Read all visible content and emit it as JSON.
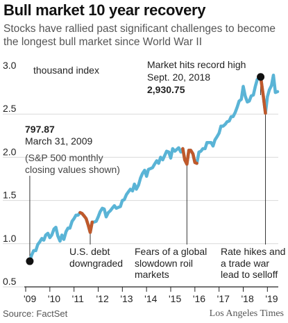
{
  "title": "Bull market 10 year recovery",
  "subtitle": "Stocks have rallied past significant challenges to become the longest bull market since World War II",
  "source": "Source: FactSet",
  "credit": "Los Angeles Times",
  "colors": {
    "line": "#5ab4d6",
    "selloff": "#c0592b",
    "marker": "#111111",
    "grid": "#d9d9d9"
  },
  "chart_data": {
    "type": "line",
    "xlabel": "",
    "ylabel": "",
    "y_unit_label": "thousand index",
    "ylim": [
      0.5,
      3.0
    ],
    "xlim": [
      2009,
      2019.45
    ],
    "yticks": [
      {
        "value": 3.0,
        "label": "3.0"
      },
      {
        "value": 2.5,
        "label": "2.5"
      },
      {
        "value": 2.0,
        "label": "2.0"
      },
      {
        "value": 1.5,
        "label": "1.5"
      },
      {
        "value": 1.0,
        "label": "1.0"
      },
      {
        "value": 0.5,
        "label": "0.5"
      }
    ],
    "xticks": [
      {
        "value": 2009,
        "label": "'09"
      },
      {
        "value": 2010,
        "label": "'10"
      },
      {
        "value": 2011,
        "label": "'11"
      },
      {
        "value": 2012,
        "label": "'12"
      },
      {
        "value": 2013,
        "label": "'13"
      },
      {
        "value": 2014,
        "label": "'14"
      },
      {
        "value": 2015,
        "label": "'15"
      },
      {
        "value": 2016,
        "label": "'16"
      },
      {
        "value": 2017,
        "label": "'17"
      },
      {
        "value": 2018,
        "label": "'18"
      },
      {
        "value": 2019,
        "label": "'19"
      }
    ],
    "series": [
      {
        "name": "",
        "points": [
          [
            2009.17,
            0.8
          ],
          [
            2009.25,
            0.87
          ],
          [
            2009.33,
            0.92
          ],
          [
            2009.42,
            0.92
          ],
          [
            2009.5,
            0.99
          ],
          [
            2009.58,
            1.02
          ],
          [
            2009.67,
            1.06
          ],
          [
            2009.75,
            1.04
          ],
          [
            2009.83,
            1.1
          ],
          [
            2009.92,
            1.12
          ],
          [
            2010.0,
            1.07
          ],
          [
            2010.08,
            1.1
          ],
          [
            2010.17,
            1.17
          ],
          [
            2010.25,
            1.19
          ],
          [
            2010.33,
            1.09
          ],
          [
            2010.42,
            1.03
          ],
          [
            2010.5,
            1.1
          ],
          [
            2010.58,
            1.05
          ],
          [
            2010.67,
            1.14
          ],
          [
            2010.75,
            1.18
          ],
          [
            2010.83,
            1.18
          ],
          [
            2010.92,
            1.26
          ],
          [
            2011.0,
            1.29
          ],
          [
            2011.08,
            1.33
          ],
          [
            2011.17,
            1.33
          ],
          [
            2011.25,
            1.36
          ],
          [
            2011.33,
            1.35
          ],
          [
            2011.42,
            1.32
          ],
          [
            2011.5,
            1.29
          ],
          [
            2011.58,
            1.22
          ],
          [
            2011.67,
            1.13
          ],
          [
            2011.75,
            1.25
          ],
          [
            2011.83,
            1.25
          ],
          [
            2011.92,
            1.26
          ],
          [
            2012.0,
            1.31
          ],
          [
            2012.08,
            1.37
          ],
          [
            2012.17,
            1.41
          ],
          [
            2012.25,
            1.4
          ],
          [
            2012.33,
            1.31
          ],
          [
            2012.42,
            1.36
          ],
          [
            2012.5,
            1.38
          ],
          [
            2012.58,
            1.41
          ],
          [
            2012.67,
            1.44
          ],
          [
            2012.75,
            1.41
          ],
          [
            2012.83,
            1.42
          ],
          [
            2012.92,
            1.43
          ],
          [
            2013.0,
            1.5
          ],
          [
            2013.08,
            1.51
          ],
          [
            2013.17,
            1.57
          ],
          [
            2013.25,
            1.6
          ],
          [
            2013.33,
            1.63
          ],
          [
            2013.42,
            1.61
          ],
          [
            2013.5,
            1.69
          ],
          [
            2013.58,
            1.63
          ],
          [
            2013.67,
            1.68
          ],
          [
            2013.75,
            1.76
          ],
          [
            2013.83,
            1.81
          ],
          [
            2013.92,
            1.85
          ],
          [
            2014.0,
            1.78
          ],
          [
            2014.08,
            1.86
          ],
          [
            2014.17,
            1.87
          ],
          [
            2014.25,
            1.88
          ],
          [
            2014.33,
            1.92
          ],
          [
            2014.42,
            1.96
          ],
          [
            2014.5,
            1.93
          ],
          [
            2014.58,
            2.0
          ],
          [
            2014.67,
            1.97
          ],
          [
            2014.75,
            2.02
          ],
          [
            2014.83,
            2.07
          ],
          [
            2014.92,
            2.06
          ],
          [
            2015.0,
            1.99
          ],
          [
            2015.08,
            2.1
          ],
          [
            2015.17,
            2.07
          ],
          [
            2015.25,
            2.09
          ],
          [
            2015.33,
            2.11
          ],
          [
            2015.42,
            2.06
          ],
          [
            2015.5,
            2.1
          ],
          [
            2015.58,
            1.97
          ],
          [
            2015.67,
            1.92
          ],
          [
            2015.75,
            2.08
          ],
          [
            2015.83,
            2.08
          ],
          [
            2015.92,
            2.04
          ],
          [
            2016.0,
            1.94
          ],
          [
            2016.08,
            1.93
          ],
          [
            2016.17,
            2.06
          ],
          [
            2016.25,
            2.07
          ],
          [
            2016.33,
            2.1
          ],
          [
            2016.42,
            2.1
          ],
          [
            2016.5,
            2.17
          ],
          [
            2016.58,
            2.17
          ],
          [
            2016.67,
            2.17
          ],
          [
            2016.75,
            2.13
          ],
          [
            2016.83,
            2.2
          ],
          [
            2016.92,
            2.24
          ],
          [
            2017.0,
            2.28
          ],
          [
            2017.08,
            2.36
          ],
          [
            2017.17,
            2.36
          ],
          [
            2017.25,
            2.38
          ],
          [
            2017.33,
            2.41
          ],
          [
            2017.42,
            2.42
          ],
          [
            2017.5,
            2.47
          ],
          [
            2017.58,
            2.47
          ],
          [
            2017.67,
            2.52
          ],
          [
            2017.75,
            2.58
          ],
          [
            2017.83,
            2.65
          ],
          [
            2017.92,
            2.67
          ],
          [
            2018.0,
            2.82
          ],
          [
            2018.08,
            2.71
          ],
          [
            2018.17,
            2.64
          ],
          [
            2018.25,
            2.65
          ],
          [
            2018.33,
            2.71
          ],
          [
            2018.42,
            2.72
          ],
          [
            2018.5,
            2.82
          ],
          [
            2018.58,
            2.9
          ],
          [
            2018.72,
            2.93
          ],
          [
            2018.83,
            2.71
          ],
          [
            2018.92,
            2.51
          ],
          [
            2019.0,
            2.7
          ],
          [
            2019.08,
            2.78
          ],
          [
            2019.17,
            2.83
          ],
          [
            2019.25,
            2.95
          ],
          [
            2019.33,
            2.75
          ],
          [
            2019.42,
            2.76
          ]
        ]
      }
    ],
    "selloffs": [
      {
        "points": [
          [
            2011.25,
            1.36
          ],
          [
            2011.33,
            1.35
          ],
          [
            2011.42,
            1.32
          ],
          [
            2011.5,
            1.29
          ],
          [
            2011.58,
            1.22
          ],
          [
            2011.67,
            1.13
          ],
          [
            2011.75,
            1.25
          ]
        ]
      },
      {
        "points": [
          [
            2015.5,
            2.1
          ],
          [
            2015.58,
            1.97
          ],
          [
            2015.67,
            1.92
          ],
          [
            2015.75,
            2.08
          ],
          [
            2015.83,
            2.08
          ],
          [
            2015.92,
            2.04
          ],
          [
            2016.0,
            1.94
          ],
          [
            2016.08,
            1.93
          ]
        ]
      },
      {
        "points": [
          [
            2018.72,
            2.93
          ],
          [
            2018.83,
            2.71
          ],
          [
            2018.92,
            2.51
          ]
        ]
      }
    ],
    "markers": [
      {
        "x": 2009.17,
        "y": 0.797
      },
      {
        "x": 2018.72,
        "y": 2.93
      }
    ],
    "annotations": {
      "start_value": "797.87",
      "start_date": "March 31, 2009",
      "start_note_1": "(S&P 500 monthly",
      "start_note_2": "closing values shown)",
      "peak_1": "Market hits record high",
      "peak_2": "Sept. 20, 2018",
      "peak_value": "2,930.75",
      "debt_1": "U.S. debt",
      "debt_2": "downgraded",
      "fears_1": "Fears of a global",
      "fears_2": "slowdown roil",
      "fears_3": "markets",
      "rate_1": "Rate hikes and",
      "rate_2": "a trade war",
      "rate_3": "lead to selloff"
    }
  }
}
